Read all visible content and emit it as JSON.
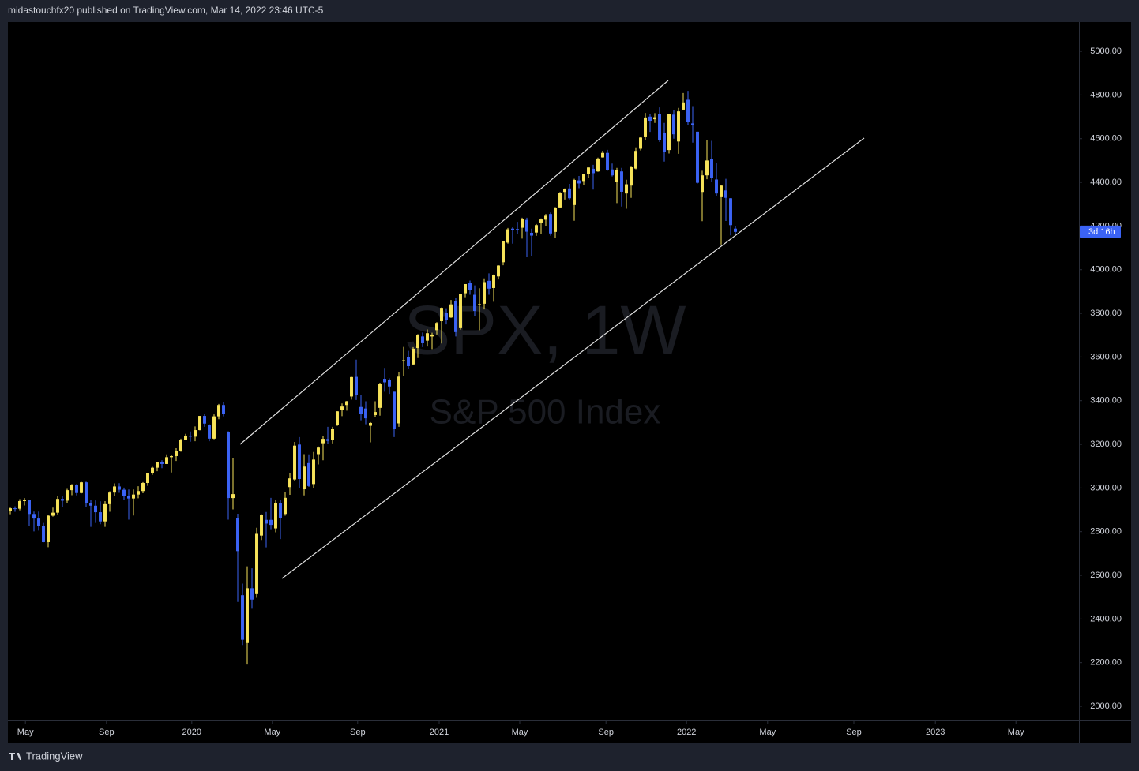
{
  "header": {
    "text": "midastouchfx20 published on TradingView.com, Mar 14, 2022 23:46 UTC-5"
  },
  "footer": {
    "brand": "TradingView"
  },
  "chart_data": {
    "type": "candlestick",
    "watermark": {
      "symbol": "SPX, 1W",
      "name": "S&P 500 Index"
    },
    "up_color": "#f7e35a",
    "down_color": "#3b63f5",
    "countdown": "3d 16h",
    "open": [
      2893,
      2907,
      2905,
      2940,
      2946,
      2881,
      2860,
      2826,
      2752,
      2873,
      2887,
      2950,
      2942,
      2990,
      3014,
      2977,
      3026,
      2932,
      2919,
      2889,
      2847,
      2926,
      2979,
      3007,
      2992,
      2962,
      2952,
      2970,
      2986,
      3023,
      3067,
      3093,
      3120,
      3110,
      3141,
      3146,
      3169,
      3221,
      3240,
      3235,
      3265,
      3330,
      3290,
      3226,
      3328,
      3380,
      3257,
      2954,
      2863,
      2509,
      2290,
      2541,
      2514,
      2782,
      2854,
      2854,
      2815,
      2930,
      2881,
      3004,
      3039,
      3199,
      2994,
      3114,
      3018,
      3155,
      3205,
      3224,
      3219,
      3289,
      3356,
      3380,
      3419,
      3509,
      3371,
      3364,
      3285,
      3334,
      3367,
      3500,
      3493,
      3441,
      3296,
      3583,
      3600,
      3566,
      3641,
      3694,
      3675,
      3694,
      3723,
      3764,
      3802,
      3781,
      3857,
      3732,
      3892,
      3939,
      3885,
      3842,
      3844,
      3949,
      3916,
      3969,
      4034,
      4124,
      4188,
      4186,
      4192,
      4228,
      4169,
      4170,
      4216,
      4229,
      4255,
      4173,
      4285,
      4356,
      4372,
      4296,
      4409,
      4406,
      4438,
      4462,
      4450,
      4514,
      4535,
      4459,
      4402,
      4450,
      4349,
      4385,
      4463,
      4554,
      4610,
      4701,
      4689,
      4712,
      4628,
      4548,
      4710,
      4587,
      4733,
      4778,
      4670,
      4632,
      4356,
      4432,
      4505,
      4413,
      4332,
      4363,
      4327,
      4188
    ],
    "high": [
      2910,
      2916,
      2949,
      2954,
      2946,
      2892,
      2892,
      2840,
      2876,
      2910,
      2964,
      2961,
      2996,
      3018,
      3018,
      3028,
      3029,
      2945,
      2943,
      2939,
      2940,
      2985,
      3021,
      3022,
      3002,
      2993,
      2993,
      3008,
      3027,
      3067,
      3097,
      3120,
      3127,
      3154,
      3150,
      3182,
      3226,
      3248,
      3259,
      3282,
      3330,
      3338,
      3292,
      3337,
      3385,
      3393,
      3260,
      3136,
      2882,
      2562,
      2641,
      2632,
      2818,
      2880,
      2890,
      2955,
      2945,
      2945,
      2980,
      3068,
      3211,
      3233,
      3155,
      3154,
      3165,
      3190,
      3238,
      3280,
      3280,
      3352,
      3387,
      3399,
      3509,
      3588,
      3426,
      3397,
      3302,
      3397,
      3482,
      3550,
      3502,
      3441,
      3529,
      3646,
      3628,
      3645,
      3705,
      3712,
      3726,
      3711,
      3760,
      3827,
      3823,
      3861,
      3870,
      3887,
      3934,
      3950,
      3928,
      3915,
      3960,
      3983,
      3978,
      4020,
      4130,
      4191,
      4194,
      4219,
      4238,
      4238,
      4188,
      4209,
      4235,
      4255,
      4262,
      4287,
      4356,
      4372,
      4393,
      4416,
      4429,
      4440,
      4468,
      4480,
      4513,
      4545,
      4549,
      4486,
      4466,
      4466,
      4412,
      4475,
      4560,
      4608,
      4718,
      4714,
      4717,
      4743,
      4672,
      4713,
      4731,
      4741,
      4809,
      4819,
      4749,
      4632,
      4453,
      4595,
      4590,
      4490,
      4389,
      4416,
      4328,
      4200
    ],
    "low": [
      2880,
      2891,
      2898,
      2920,
      2825,
      2801,
      2805,
      2751,
      2729,
      2869,
      2879,
      2913,
      2931,
      2967,
      2966,
      2975,
      2914,
      2822,
      2840,
      2834,
      2822,
      2891,
      2964,
      2978,
      2946,
      2855,
      2874,
      2953,
      2976,
      3010,
      3060,
      3077,
      3091,
      3110,
      3071,
      3124,
      3166,
      3220,
      3212,
      3214,
      3264,
      3280,
      3214,
      3223,
      3315,
      3328,
      2855,
      2902,
      2478,
      2281,
      2191,
      2447,
      2497,
      2762,
      2728,
      2811,
      2797,
      2766,
      2873,
      2969,
      3032,
      2999,
      2966,
      3005,
      3000,
      3108,
      3127,
      3200,
      3204,
      3284,
      3329,
      3354,
      3405,
      3403,
      3310,
      3292,
      3209,
      3324,
      3331,
      3441,
      3431,
      3233,
      3280,
      3511,
      3545,
      3565,
      3595,
      3645,
      3648,
      3636,
      3703,
      3662,
      3749,
      3779,
      3694,
      3725,
      3874,
      3885,
      3789,
      3723,
      3818,
      3885,
      3853,
      3955,
      4020,
      4119,
      4119,
      4165,
      4142,
      4057,
      4062,
      4155,
      4164,
      4198,
      4156,
      4145,
      4281,
      4321,
      4321,
      4224,
      4373,
      4386,
      4422,
      4367,
      4448,
      4513,
      4453,
      4427,
      4305,
      4289,
      4279,
      4329,
      4460,
      4546,
      4595,
      4631,
      4672,
      4585,
      4495,
      4532,
      4600,
      4531,
      4733,
      4663,
      4582,
      4395,
      4222,
      4414,
      4401,
      4335,
      4115,
      4223,
      4157,
      4162
    ],
    "close": [
      2907,
      2905,
      2940,
      2946,
      2881,
      2860,
      2826,
      2752,
      2873,
      2887,
      2950,
      2942,
      2990,
      3014,
      2977,
      3026,
      2932,
      2919,
      2889,
      2847,
      2926,
      2979,
      3007,
      2992,
      2962,
      2952,
      2970,
      2986,
      3023,
      3067,
      3093,
      3120,
      3110,
      3141,
      3146,
      3169,
      3221,
      3240,
      3235,
      3265,
      3330,
      3295,
      3226,
      3328,
      3380,
      3338,
      2954,
      2972,
      2711,
      2305,
      2541,
      2489,
      2790,
      2875,
      2837,
      2831,
      2930,
      2864,
      2955,
      3044,
      3194,
      3041,
      3098,
      3009,
      3130,
      3185,
      3225,
      3216,
      3271,
      3351,
      3373,
      3397,
      3508,
      3427,
      3341,
      3319,
      3298,
      3348,
      3477,
      3484,
      3465,
      3270,
      3510,
      3585,
      3558,
      3638,
      3699,
      3663,
      3709,
      3703,
      3756,
      3825,
      3768,
      3841,
      3714,
      3887,
      3934,
      3907,
      3811,
      3842,
      3943,
      3913,
      3975,
      4019,
      4129,
      4185,
      4180,
      4181,
      4233,
      4174,
      4156,
      4204,
      4230,
      4247,
      4166,
      4281,
      4352,
      4369,
      4327,
      4411,
      4395,
      4437,
      4468,
      4442,
      4509,
      4535,
      4458,
      4432,
      4455,
      4357,
      4391,
      4471,
      4544,
      4605,
      4697,
      4682,
      4698,
      4595,
      4538,
      4712,
      4620,
      4725,
      4766,
      4677,
      4662,
      4398,
      4432,
      4500,
      4419,
      4349,
      4385,
      4329,
      4204,
      4173
    ],
    "ylim": [
      1935,
      5134
    ],
    "yticks": [
      {
        "value": 2000,
        "label": "2000.00"
      },
      {
        "value": 2200,
        "label": "2200.00"
      },
      {
        "value": 2400,
        "label": "2400.00"
      },
      {
        "value": 2600,
        "label": "2600.00"
      },
      {
        "value": 2800,
        "label": "2800.00"
      },
      {
        "value": 3000,
        "label": "3000.00"
      },
      {
        "value": 3200,
        "label": "3200.00"
      },
      {
        "value": 3400,
        "label": "3400.00"
      },
      {
        "value": 3600,
        "label": "3600.00"
      },
      {
        "value": 3800,
        "label": "3800.00"
      },
      {
        "value": 4000,
        "label": "4000.00"
      },
      {
        "value": 4200,
        "label": "4200.00"
      },
      {
        "value": 4400,
        "label": "4400.00"
      },
      {
        "value": 4600,
        "label": "4600.00"
      },
      {
        "value": 4800,
        "label": "4800.00"
      },
      {
        "value": 5000,
        "label": "5000.00"
      }
    ],
    "xlim": [
      -0.5,
      225.5
    ],
    "xticks": [
      {
        "value": 3.2,
        "label": "May"
      },
      {
        "value": 20.3,
        "label": "Sep"
      },
      {
        "value": 38.3,
        "label": "2020"
      },
      {
        "value": 55.3,
        "label": "May"
      },
      {
        "value": 73.3,
        "label": "Sep"
      },
      {
        "value": 90.5,
        "label": "2021"
      },
      {
        "value": 107.5,
        "label": "May"
      },
      {
        "value": 125.7,
        "label": "Sep"
      },
      {
        "value": 142.7,
        "label": "2022"
      },
      {
        "value": 159.8,
        "label": "May"
      },
      {
        "value": 178,
        "label": "Sep"
      },
      {
        "value": 195.2,
        "label": "2023"
      },
      {
        "value": 212.2,
        "label": "May"
      }
    ]
  }
}
